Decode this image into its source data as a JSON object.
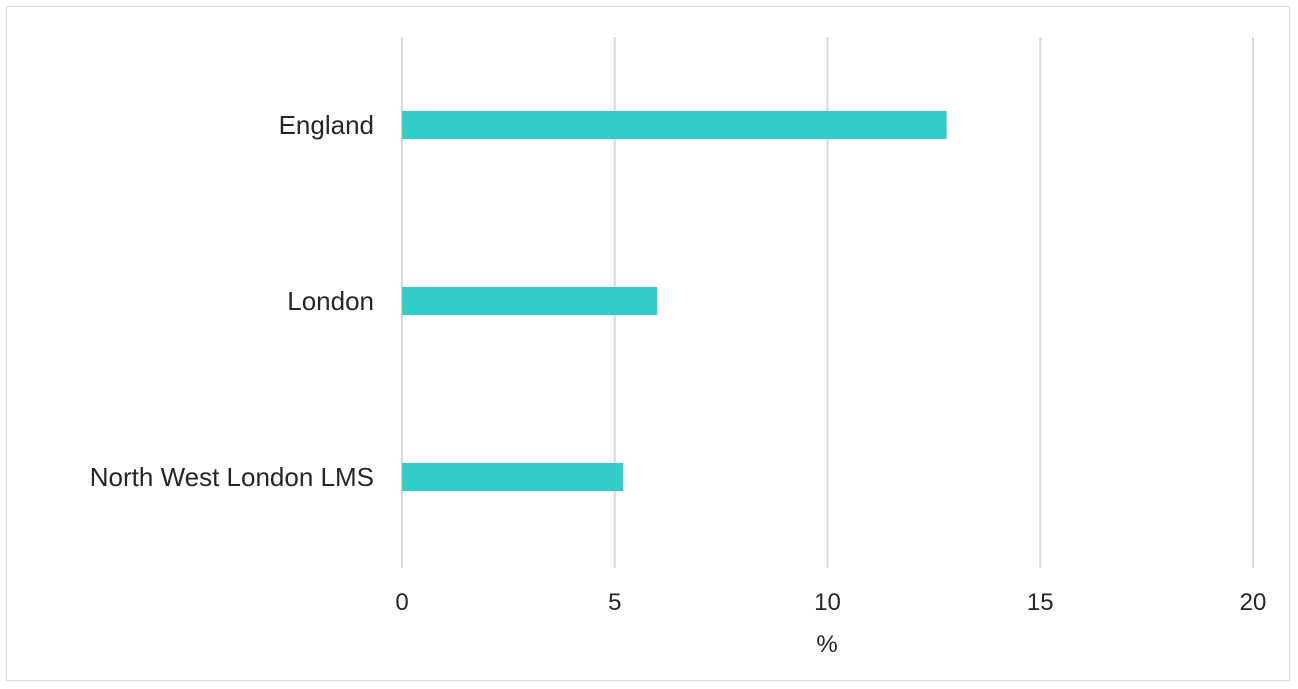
{
  "chart_data": {
    "type": "bar",
    "orientation": "horizontal",
    "categories": [
      "England",
      "London",
      "North West London LMS"
    ],
    "values": [
      12.8,
      6.0,
      5.2
    ],
    "xlabel": "%",
    "ylabel": "",
    "xlim": [
      0,
      20
    ],
    "xticks": [
      "0",
      "5",
      "10",
      "15",
      "20"
    ],
    "grid": "vertical",
    "legend": "none",
    "colors": {
      "bar": "#33ccc9",
      "grid": "#d9d9d9",
      "text": "#262626"
    }
  }
}
